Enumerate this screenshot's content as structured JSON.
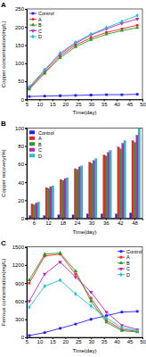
{
  "chart_data": [
    {
      "type": "line",
      "title": "A",
      "x_label": "Time(day)",
      "y_label": "Copper concentration(mg/L)",
      "x": [
        6,
        12,
        18,
        24,
        30,
        36,
        42,
        48
      ],
      "series": [
        {
          "name": "Control",
          "color": "#1f1fff",
          "marker": "square",
          "values": [
            8,
            9,
            10,
            11,
            12,
            13,
            13,
            14
          ]
        },
        {
          "name": "A",
          "color": "#ff2020",
          "marker": "circle",
          "values": [
            30,
            75,
            120,
            150,
            170,
            185,
            195,
            205
          ]
        },
        {
          "name": "B",
          "color": "#20a020",
          "marker": "triangle",
          "values": [
            28,
            72,
            115,
            145,
            165,
            180,
            190,
            198
          ]
        },
        {
          "name": "C",
          "color": "#c020c0",
          "marker": "triangle-down",
          "values": [
            32,
            80,
            125,
            155,
            178,
            195,
            210,
            222
          ]
        },
        {
          "name": "D",
          "color": "#20c0d0",
          "marker": "diamond",
          "values": [
            35,
            82,
            128,
            158,
            180,
            198,
            215,
            232
          ]
        }
      ],
      "xlim": [
        5,
        50
      ],
      "xticks": [
        5,
        10,
        15,
        20,
        25,
        30,
        35,
        40,
        45,
        50
      ],
      "ylim": [
        0,
        250
      ],
      "yticks": [
        0,
        50,
        100,
        150,
        200,
        250
      ],
      "legend": "upper left"
    },
    {
      "type": "bar",
      "title": "B",
      "x_label": "Time(day)",
      "y_label": "Copper recovery(%)",
      "categories": [
        6,
        12,
        18,
        24,
        30,
        36,
        42,
        48
      ],
      "series": [
        {
          "name": "Control",
          "color": "#1f1fff",
          "values": [
            3,
            3,
            4,
            4,
            5,
            5,
            5,
            6
          ]
        },
        {
          "name": "A",
          "color": "#ff2020",
          "values": [
            16,
            34,
            43,
            55,
            62,
            70,
            79,
            86
          ]
        },
        {
          "name": "B",
          "color": "#20a020",
          "values": [
            15,
            33,
            42,
            54,
            61,
            69,
            77,
            84
          ]
        },
        {
          "name": "C",
          "color": "#c020c0",
          "values": [
            17,
            35,
            44,
            57,
            64,
            73,
            83,
            92
          ]
        },
        {
          "name": "D",
          "color": "#20c0d0",
          "values": [
            18,
            36,
            45,
            58,
            66,
            75,
            86,
            100
          ]
        }
      ],
      "ylim": [
        0,
        100
      ],
      "yticks": [
        0,
        20,
        40,
        60,
        80,
        100
      ],
      "legend": "upper left"
    },
    {
      "type": "line",
      "title": "C",
      "x_label": "Time(day)",
      "y_label": "Ferrous concentration(mg/L)",
      "x": [
        6,
        12,
        18,
        24,
        30,
        36,
        42,
        48
      ],
      "series": [
        {
          "name": "Control",
          "color": "#1f1fff",
          "marker": "square",
          "values": [
            30,
            80,
            150,
            220,
            300,
            360,
            420,
            430
          ]
        },
        {
          "name": "A",
          "color": "#ff2020",
          "marker": "circle",
          "values": [
            900,
            1350,
            1380,
            1050,
            650,
            280,
            130,
            100
          ]
        },
        {
          "name": "B",
          "color": "#20a020",
          "marker": "triangle",
          "values": [
            950,
            1380,
            1400,
            1100,
            600,
            250,
            110,
            90
          ]
        },
        {
          "name": "C",
          "color": "#c020c0",
          "marker": "triangle-down",
          "values": [
            600,
            1050,
            1250,
            1000,
            750,
            420,
            200,
            130
          ]
        },
        {
          "name": "D",
          "color": "#20c0d0",
          "marker": "diamond",
          "values": [
            500,
            850,
            950,
            720,
            520,
            320,
            160,
            110
          ]
        }
      ],
      "xlim": [
        5,
        50
      ],
      "xticks": [
        5,
        10,
        15,
        20,
        25,
        30,
        35,
        40,
        45,
        50
      ],
      "ylim": [
        0,
        1500
      ],
      "yticks": [
        0,
        300,
        600,
        900,
        1200,
        1500
      ],
      "legend": "upper right"
    }
  ]
}
